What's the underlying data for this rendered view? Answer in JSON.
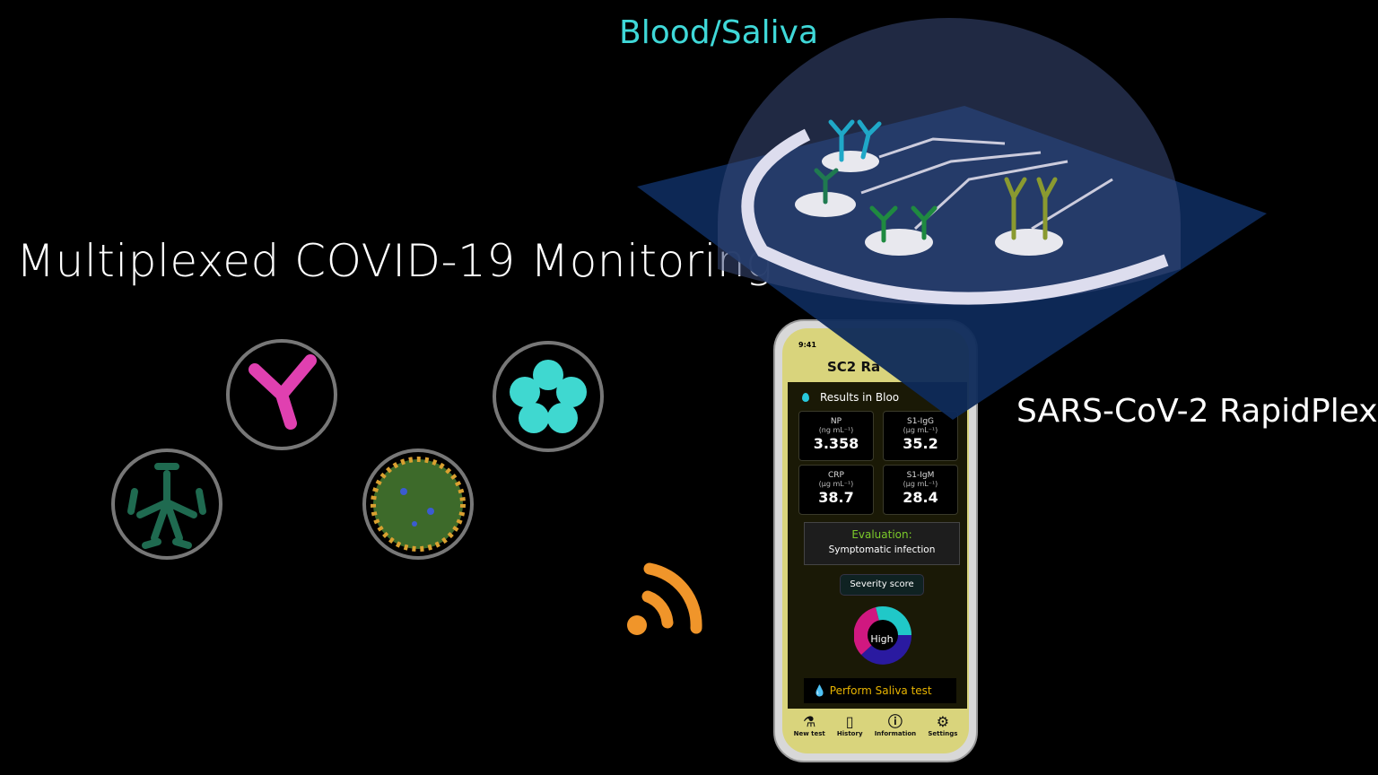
{
  "title": "Multiplexed COVID-19 Monitoring",
  "sample_label": "Blood/Saliva",
  "device_label": "SARS-CoV-2 RapidPlex",
  "colors": {
    "sample_label": "#3fd8d8",
    "wireless": "#f0952a",
    "app_bar": "#d9d47c",
    "evaluation": "#7ccb2a",
    "saliva_button": "#e8b400"
  },
  "icons": [
    "antibody-magenta-icon",
    "protein-cluster-icon",
    "antibody-green-icon",
    "virus-icon",
    "wireless-icon"
  ],
  "phone": {
    "time": "9:41",
    "app_title": "SC2 Ra",
    "results_heading": "Results in Bloo",
    "cards": [
      {
        "name": "NP",
        "unit": "(ng mL⁻¹)",
        "value": "3.358"
      },
      {
        "name": "S1-IgG",
        "unit": "(µg mL⁻¹)",
        "value": "35.2"
      },
      {
        "name": "CRP",
        "unit": "(µg mL⁻¹)",
        "value": "38.7"
      },
      {
        "name": "S1-IgM",
        "unit": "(µg mL⁻¹)",
        "value": "28.4"
      }
    ],
    "evaluation_label": "Evaluation:",
    "evaluation_value": "Symptomatic infection",
    "severity_label": "Severity score",
    "severity_value": "High",
    "saliva_button": "Perform Saliva test",
    "nav": [
      {
        "icon": "flask-icon",
        "glyph": "⚗",
        "label": "New test"
      },
      {
        "icon": "notebook-icon",
        "glyph": "▯",
        "label": "History"
      },
      {
        "icon": "info-icon",
        "glyph": "ⓘ",
        "label": "Information"
      },
      {
        "icon": "gear-icon",
        "glyph": "⚙",
        "label": "Settings"
      }
    ]
  }
}
